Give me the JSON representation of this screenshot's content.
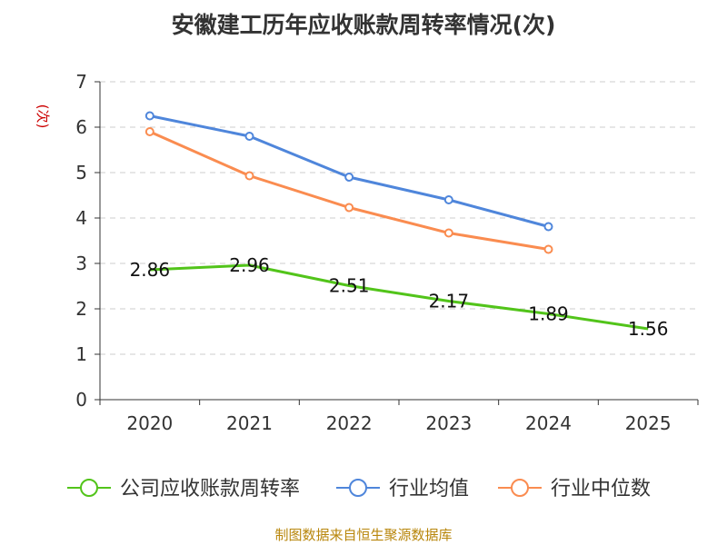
{
  "chart_data": {
    "type": "line",
    "title": "安徽建工历年应收账款周转率情况(次)",
    "ylabel": "(次)",
    "xlabel": "",
    "categories": [
      "2020",
      "2021",
      "2022",
      "2023",
      "2024",
      "2025"
    ],
    "ylim": [
      0,
      7
    ],
    "yticks": [
      "0",
      "1",
      "2",
      "3",
      "4",
      "5",
      "6",
      "7"
    ],
    "grid": true,
    "legend_position": "bottom",
    "series": [
      {
        "name": "公司应收账款周转率",
        "color": "#52c41a",
        "values": [
          2.86,
          2.96,
          2.51,
          2.17,
          1.89,
          1.56
        ],
        "labels": [
          "2.86",
          "2.96",
          "2.51",
          "2.17",
          "1.89",
          "1.56"
        ],
        "show_points": false,
        "show_labels": true
      },
      {
        "name": "行业均值",
        "color": "#4f86db",
        "values": [
          6.25,
          5.8,
          4.9,
          4.4,
          3.81,
          null
        ],
        "show_points": true,
        "show_labels": false
      },
      {
        "name": "行业中位数",
        "color": "#fa8c50",
        "values": [
          5.9,
          4.93,
          4.23,
          3.67,
          3.31,
          null
        ],
        "show_points": true,
        "show_labels": false
      }
    ]
  },
  "footer": "制图数据来自恒生聚源数据库"
}
